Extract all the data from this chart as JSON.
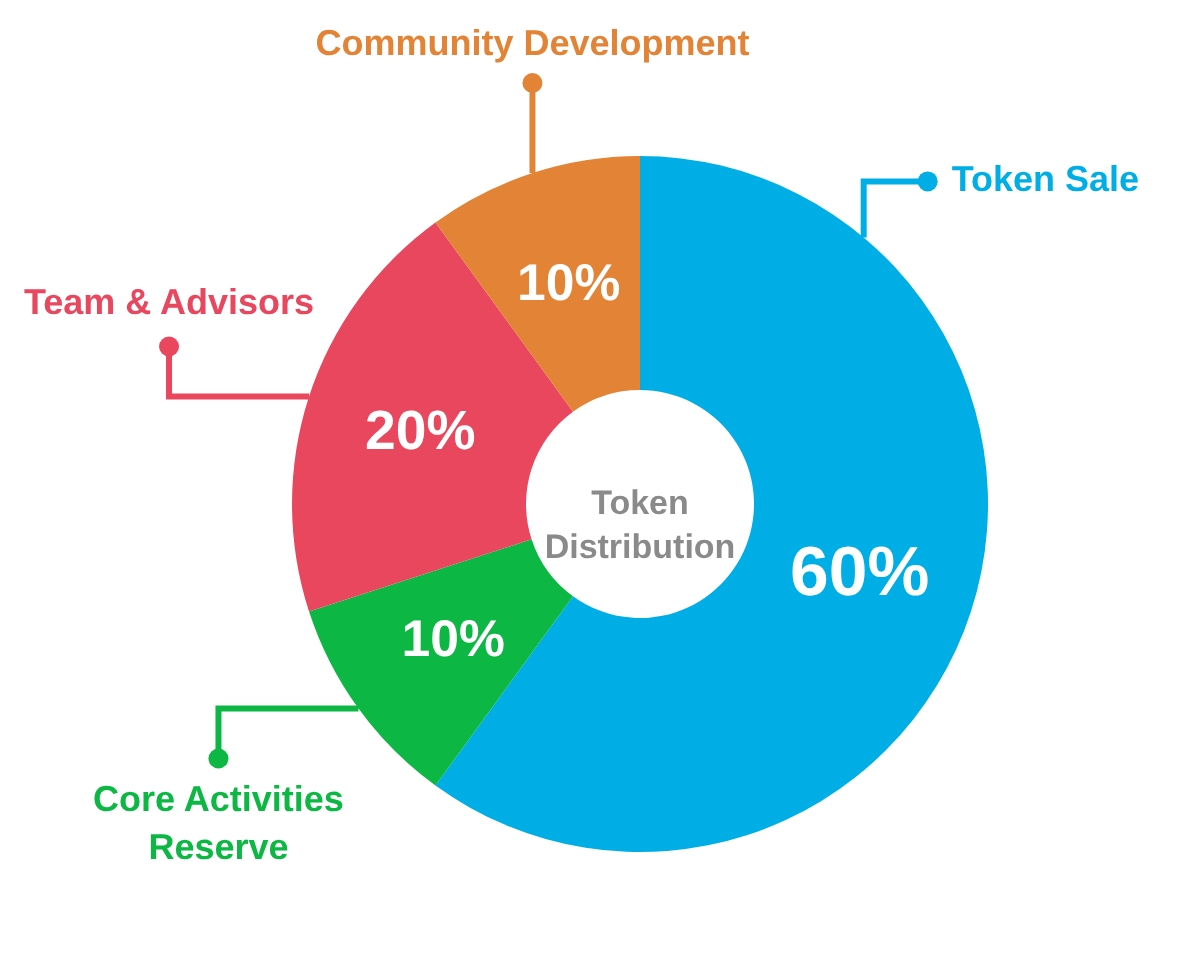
{
  "chart_data": {
    "type": "donut",
    "title": "Token Distribution",
    "categories": [
      "Token Sale",
      "Core Activities Reserve",
      "Team & Advisors",
      "Community Development"
    ],
    "values": [
      60,
      10,
      20,
      10
    ],
    "colors": [
      "#00aee6",
      "#0cb843",
      "#e8475e",
      "#e28336"
    ],
    "value_labels": [
      "60%",
      "10%",
      "20%",
      "10%"
    ]
  }
}
